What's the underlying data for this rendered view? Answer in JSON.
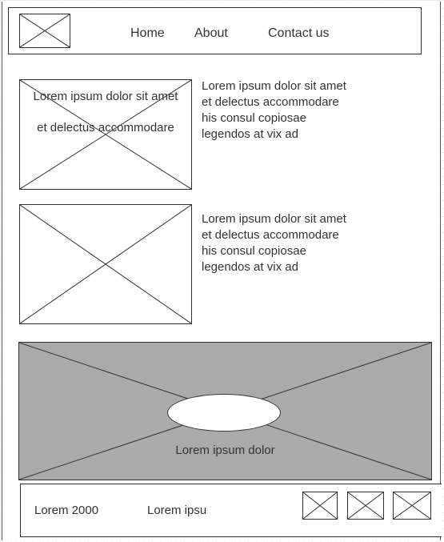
{
  "header": {
    "logo_icon": "image-placeholder-icon",
    "nav": [
      {
        "label": "Home"
      },
      {
        "label": "About"
      },
      {
        "label": "Contact us"
      }
    ]
  },
  "content": {
    "items": [
      {
        "image_icon": "image-placeholder-icon",
        "image_overlay": [
          "Lorem ipsum dolor sit amet",
          "et delectus accommodare"
        ],
        "text": "Lorem ipsum dolor sit amet et delectus accommodare his consul copiosae legendos at vix ad"
      },
      {
        "image_icon": "image-placeholder-icon",
        "text": "Lorem ipsum dolor sit amet et delectus accommodare his consul copiosae legendos at vix ad"
      }
    ]
  },
  "banner": {
    "image_icon": "image-placeholder-icon",
    "caption": "Lorem ipsum dolor",
    "fill_color": "#aaaaaa"
  },
  "footer": {
    "copyright": "Lorem 2000",
    "text": "Lorem ipsu",
    "icons": [
      "image-placeholder-icon",
      "image-placeholder-icon",
      "image-placeholder-icon"
    ]
  }
}
